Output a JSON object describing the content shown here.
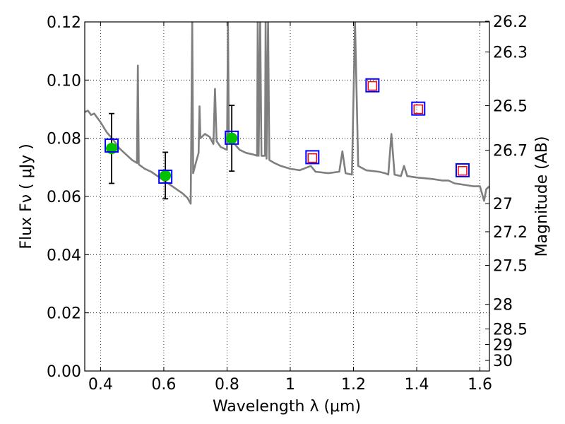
{
  "chart_data": {
    "type": "scatter",
    "xlabel": "Wavelength  λ (μm)",
    "ylabel": "Flux  Fν  ( μJy )",
    "ylabel_right": "Magnitude (AB)",
    "xlim": [
      0.35,
      1.63
    ],
    "ylim": [
      0.0,
      0.12
    ],
    "grid": true,
    "x_ticks": [
      {
        "value": 0.4,
        "label": "0.4"
      },
      {
        "value": 0.6,
        "label": "0.6"
      },
      {
        "value": 0.8,
        "label": "0.8"
      },
      {
        "value": 1.0,
        "label": "1"
      },
      {
        "value": 1.2,
        "label": "1.2"
      },
      {
        "value": 1.4,
        "label": "1.4"
      },
      {
        "value": 1.6,
        "label": "1.6"
      }
    ],
    "y_ticks": [
      {
        "value": 0.0,
        "label": "0.00"
      },
      {
        "value": 0.02,
        "label": "0.02"
      },
      {
        "value": 0.04,
        "label": "0.04"
      },
      {
        "value": 0.06,
        "label": "0.06"
      },
      {
        "value": 0.08,
        "label": "0.08"
      },
      {
        "value": 0.1,
        "label": "0.10"
      },
      {
        "value": 0.12,
        "label": "0.12"
      }
    ],
    "mag_ticks": [
      {
        "value": 26.2,
        "label": "26.2"
      },
      {
        "value": 26.3,
        "label": "26.3"
      },
      {
        "value": 26.5,
        "label": "26.5"
      },
      {
        "value": 26.7,
        "label": "26.7"
      },
      {
        "value": 27.0,
        "label": "27"
      },
      {
        "value": 27.2,
        "label": "27.2"
      },
      {
        "value": 27.5,
        "label": "27.5"
      },
      {
        "value": 28.0,
        "label": "28"
      },
      {
        "value": 28.5,
        "label": "28.5"
      },
      {
        "value": 29.0,
        "label": "29"
      },
      {
        "value": 30.0,
        "label": "30"
      }
    ],
    "series": [
      {
        "name": "",
        "kind": "model-spectrum-line",
        "color": "#7f7f7f",
        "points": [
          [
            0.35,
            0.089
          ],
          [
            0.36,
            0.0895
          ],
          [
            0.37,
            0.088
          ],
          [
            0.38,
            0.0885
          ],
          [
            0.39,
            0.087
          ],
          [
            0.4,
            0.0855
          ],
          [
            0.42,
            0.082
          ],
          [
            0.44,
            0.0795
          ],
          [
            0.46,
            0.0765
          ],
          [
            0.48,
            0.0745
          ],
          [
            0.5,
            0.0725
          ],
          [
            0.515,
            0.0715
          ],
          [
            0.518,
            0.105
          ],
          [
            0.521,
            0.071
          ],
          [
            0.54,
            0.0695
          ],
          [
            0.56,
            0.0685
          ],
          [
            0.58,
            0.067
          ],
          [
            0.6,
            0.0655
          ],
          [
            0.62,
            0.064
          ],
          [
            0.64,
            0.0625
          ],
          [
            0.66,
            0.061
          ],
          [
            0.675,
            0.0595
          ],
          [
            0.685,
            0.0575
          ],
          [
            0.69,
            0.12
          ],
          [
            0.693,
            0.068
          ],
          [
            0.7,
            0.071
          ],
          [
            0.71,
            0.075
          ],
          [
            0.713,
            0.091
          ],
          [
            0.716,
            0.08
          ],
          [
            0.73,
            0.0815
          ],
          [
            0.745,
            0.0805
          ],
          [
            0.757,
            0.078
          ],
          [
            0.762,
            0.097
          ],
          [
            0.767,
            0.079
          ],
          [
            0.78,
            0.077
          ],
          [
            0.8,
            0.076
          ],
          [
            0.803,
            0.12
          ],
          [
            0.806,
            0.079
          ],
          [
            0.82,
            0.0785
          ],
          [
            0.84,
            0.076
          ],
          [
            0.86,
            0.075
          ],
          [
            0.88,
            0.0745
          ],
          [
            0.895,
            0.074
          ],
          [
            0.897,
            0.12
          ],
          [
            0.9,
            0.074
          ],
          [
            0.905,
            0.12
          ],
          [
            0.909,
            0.074
          ],
          [
            0.92,
            0.074
          ],
          [
            0.922,
            0.12
          ],
          [
            0.925,
            0.073
          ],
          [
            0.93,
            0.12
          ],
          [
            0.934,
            0.0725
          ],
          [
            0.95,
            0.0715
          ],
          [
            0.97,
            0.0705
          ],
          [
            1.0,
            0.0695
          ],
          [
            1.03,
            0.069
          ],
          [
            1.065,
            0.0705
          ],
          [
            1.08,
            0.0685
          ],
          [
            1.12,
            0.068
          ],
          [
            1.155,
            0.0685
          ],
          [
            1.165,
            0.0755
          ],
          [
            1.175,
            0.068
          ],
          [
            1.195,
            0.0675
          ],
          [
            1.205,
            0.12
          ],
          [
            1.215,
            0.0705
          ],
          [
            1.24,
            0.069
          ],
          [
            1.28,
            0.0685
          ],
          [
            1.3,
            0.068
          ],
          [
            1.31,
            0.0675
          ],
          [
            1.32,
            0.0815
          ],
          [
            1.33,
            0.0675
          ],
          [
            1.35,
            0.067
          ],
          [
            1.36,
            0.0705
          ],
          [
            1.37,
            0.067
          ],
          [
            1.4,
            0.0665
          ],
          [
            1.45,
            0.066
          ],
          [
            1.48,
            0.0655
          ],
          [
            1.5,
            0.0655
          ],
          [
            1.52,
            0.0645
          ],
          [
            1.55,
            0.064
          ],
          [
            1.58,
            0.0635
          ],
          [
            1.6,
            0.0635
          ],
          [
            1.613,
            0.0585
          ],
          [
            1.62,
            0.0625
          ],
          [
            1.63,
            0.0635
          ]
        ]
      },
      {
        "name": "",
        "kind": "observed-photometry",
        "color": "#00c000",
        "points": [
          {
            "x": 0.435,
            "y": 0.0765,
            "yerr": 0.012
          },
          {
            "x": 0.605,
            "y": 0.0672,
            "yerr": 0.008
          },
          {
            "x": 0.815,
            "y": 0.08,
            "yerr": 0.0113
          }
        ]
      },
      {
        "name": "",
        "kind": "model-photometry",
        "color": "#0000ff",
        "points": [
          {
            "x": 0.435,
            "y": 0.0775
          },
          {
            "x": 0.605,
            "y": 0.0668
          },
          {
            "x": 0.815,
            "y": 0.0802
          },
          {
            "x": 1.07,
            "y": 0.0735
          },
          {
            "x": 1.26,
            "y": 0.0982
          },
          {
            "x": 1.405,
            "y": 0.0902
          },
          {
            "x": 1.545,
            "y": 0.069
          }
        ]
      },
      {
        "name": "",
        "kind": "upper-limits",
        "color": "#ff0000",
        "points": [
          {
            "x": 1.07,
            "y": 0.0732
          },
          {
            "x": 1.26,
            "y": 0.098
          },
          {
            "x": 1.405,
            "y": 0.09
          },
          {
            "x": 1.545,
            "y": 0.0688
          }
        ]
      }
    ]
  }
}
